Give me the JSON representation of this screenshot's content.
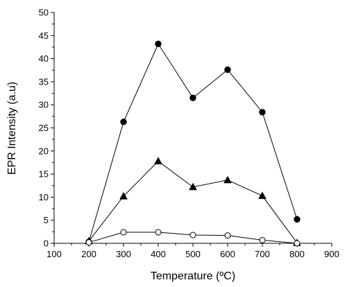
{
  "chart_data": {
    "type": "line",
    "title": "",
    "xlabel": "Temperature (ºC)",
    "ylabel": "EPR Intensity (a.u)",
    "xlim": [
      100,
      900
    ],
    "ylim": [
      0,
      50
    ],
    "xticks": [
      100,
      200,
      300,
      400,
      500,
      600,
      700,
      800,
      900
    ],
    "yticks": [
      0,
      5,
      10,
      15,
      20,
      25,
      30,
      35,
      40,
      45,
      50
    ],
    "x_minor_step": 50,
    "y_minor_step": 2.5,
    "grid": false,
    "legend": "none",
    "series": [
      {
        "marker": "filled-circle",
        "color": "#000000",
        "x": [
          200,
          300,
          400,
          500,
          600,
          700,
          800
        ],
        "values": [
          0.3,
          26.3,
          43.2,
          31.5,
          37.6,
          28.4,
          5.2
        ]
      },
      {
        "marker": "filled-triangle",
        "color": "#000000",
        "x": [
          200,
          300,
          400,
          500,
          600,
          700,
          800
        ],
        "values": [
          0.5,
          10.2,
          17.8,
          12.2,
          13.7,
          10.3,
          0.1
        ]
      },
      {
        "marker": "open-circle",
        "color": "#000000",
        "x": [
          200,
          300,
          400,
          500,
          600,
          700,
          800
        ],
        "values": [
          0.2,
          2.4,
          2.4,
          1.8,
          1.7,
          0.7,
          0.0
        ]
      }
    ]
  }
}
